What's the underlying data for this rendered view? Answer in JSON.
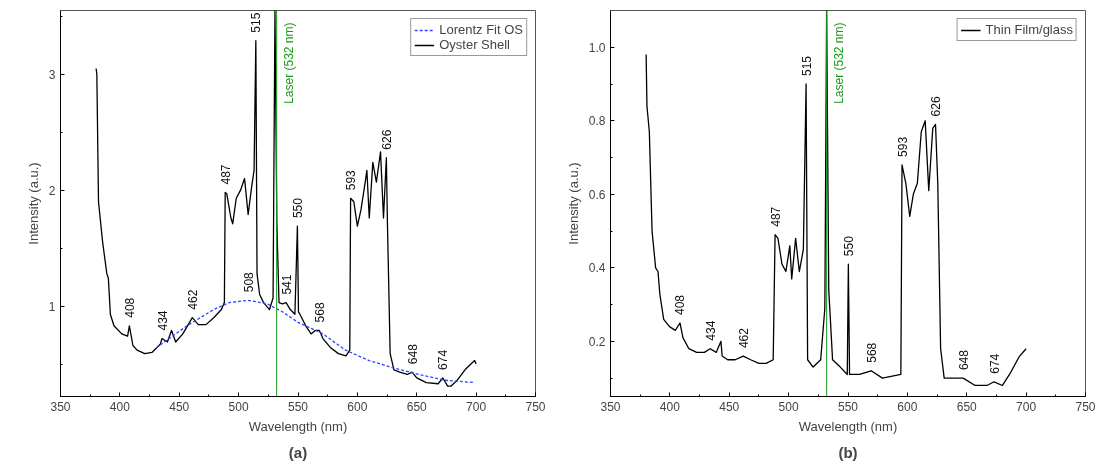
{
  "chart_data": [
    {
      "type": "line",
      "xlabel": "Wavelength (nm)",
      "ylabel": "Intensity (a.u.)",
      "xlim": [
        350,
        750
      ],
      "ylim": [
        0.22,
        3.55
      ],
      "xticks": [
        350,
        {
          "value": 375,
          "label": null
        },
        400,
        {
          "value": 425,
          "label": null
        },
        450,
        {
          "value": 475,
          "label": null
        },
        500,
        {
          "value": 525,
          "label": null
        },
        550,
        {
          "value": 575,
          "label": null
        },
        600,
        {
          "value": 625,
          "label": null
        },
        650,
        {
          "value": 675,
          "label": null
        },
        700,
        {
          "value": 725,
          "label": null
        },
        750
      ],
      "yticks": [
        {
          "value": 0.5,
          "label": null
        },
        1,
        {
          "value": 1.5,
          "label": null
        },
        2,
        {
          "value": 2.5,
          "label": null
        },
        3,
        {
          "value": 3.5,
          "label": null
        }
      ],
      "grid": false,
      "legend": "top right",
      "marker": "none",
      "series": [
        {
          "name": "Lorentz Fit OS",
          "color": "#2f45ff",
          "line_style": "dashed",
          "x": [
            430.6,
            456.5,
            479,
            492,
            508,
            524,
            537,
            550,
            571,
            590,
            610,
            629,
            652,
            674,
            698.7
          ],
          "values": [
            0.64,
            0.83,
            0.97,
            1.03,
            1.05,
            1.02,
            0.95,
            0.86,
            0.76,
            0.62,
            0.53,
            0.47,
            0.41,
            0.36,
            0.34
          ]
        },
        {
          "name": "Oyster Shell",
          "color": "#000000",
          "line_style": "solid",
          "x": [
            380,
            380.6,
            382,
            385.5,
            389,
            390.3,
            392,
            395,
            401.6,
            406.5,
            408,
            411,
            414.5,
            421,
            427,
            434,
            435.5,
            440,
            443.5,
            447,
            453,
            461,
            466,
            472.5,
            479,
            485.5,
            488,
            488.7,
            490,
            493.5,
            495,
            498,
            501.6,
            505,
            508,
            511,
            513,
            514.5,
            515.5,
            517.7,
            521,
            526,
            529,
            530.6,
            532.2,
            534,
            537,
            540,
            543.5,
            547.4,
            549.5,
            550.4,
            551.6,
            556.5,
            561,
            564.5,
            568,
            571,
            577.5,
            584,
            590.4,
            593.6,
            594.3,
            597,
            600,
            603,
            606.6,
            608,
            610,
            613,
            616,
            619.5,
            622,
            624.4,
            625.3,
            627.6,
            630.8,
            635.7,
            642,
            646,
            650,
            658,
            668,
            672,
            676,
            679,
            684,
            690.6,
            698.7,
            700
          ],
          "values": [
            3.05,
            3.0,
            1.9,
            1.55,
            1.28,
            1.24,
            0.93,
            0.83,
            0.76,
            0.74,
            0.83,
            0.66,
            0.62,
            0.59,
            0.6,
            0.67,
            0.72,
            0.69,
            0.79,
            0.69,
            0.76,
            0.9,
            0.84,
            0.84,
            0.9,
            0.97,
            1.03,
            1.98,
            1.97,
            1.76,
            1.71,
            1.93,
            2.0,
            2.1,
            1.79,
            2.03,
            2.17,
            3.29,
            1.28,
            1.1,
            1.03,
            0.97,
            1.07,
            3.55,
            1.72,
            1.03,
            1.02,
            1.03,
            0.97,
            0.93,
            1.69,
            0.95,
            0.93,
            0.83,
            0.76,
            0.79,
            0.79,
            0.72,
            0.64,
            0.59,
            0.57,
            0.62,
            1.93,
            1.9,
            1.69,
            1.83,
            2.07,
            2.17,
            1.76,
            2.24,
            2.07,
            2.33,
            1.76,
            2.28,
            1.72,
            0.59,
            0.45,
            0.43,
            0.41,
            0.43,
            0.38,
            0.34,
            0.33,
            0.38,
            0.31,
            0.31,
            0.36,
            0.45,
            0.53,
            0.5
          ]
        }
      ],
      "ref_lines": [
        {
          "axis": "x",
          "value": 532,
          "label": "Laser (532 nm)",
          "color": "#1a9a1a"
        }
      ],
      "annotations": [
        {
          "text": "408",
          "x": 408,
          "y": 0.83
        },
        {
          "text": "434",
          "x": 435.5,
          "y": 0.72
        },
        {
          "text": "462",
          "x": 461,
          "y": 0.9
        },
        {
          "text": "487",
          "x": 488.7,
          "y": 1.98
        },
        {
          "text": "508",
          "x": 508,
          "y": 1.05
        },
        {
          "text": "515",
          "x": 514.5,
          "y": 3.29
        },
        {
          "text": "541",
          "x": 540,
          "y": 1.03
        },
        {
          "text": "550",
          "x": 549.5,
          "y": 1.69
        },
        {
          "text": "568",
          "x": 568,
          "y": 0.79
        },
        {
          "text": "593",
          "x": 594.3,
          "y": 1.93
        },
        {
          "text": "626",
          "x": 624.4,
          "y": 2.28
        },
        {
          "text": "648",
          "x": 646,
          "y": 0.43
        },
        {
          "text": "674",
          "x": 672,
          "y": 0.38
        },
        "(a)"
      ]
    },
    {
      "type": "line",
      "xlabel": "Wavelength (nm)",
      "ylabel": "Intensity (a.u.)",
      "xlim": [
        350,
        750
      ],
      "ylim": [
        0.05,
        1.1
      ],
      "xticks": [
        350,
        {
          "value": 375,
          "label": null
        },
        400,
        {
          "value": 425,
          "label": null
        },
        450,
        {
          "value": 475,
          "label": null
        },
        500,
        {
          "value": 525,
          "label": null
        },
        550,
        {
          "value": 575,
          "label": null
        },
        600,
        {
          "value": 625,
          "label": null
        },
        650,
        {
          "value": 675,
          "label": null
        },
        700,
        {
          "value": 725,
          "label": null
        },
        750
      ],
      "yticks": [
        {
          "value": 0.1,
          "label": null
        },
        0.2,
        {
          "value": 0.3,
          "label": null
        },
        0.4,
        {
          "value": 0.5,
          "label": null
        },
        0.6,
        {
          "value": 0.7,
          "label": null
        },
        0.8,
        {
          "value": 0.9,
          "label": null
        },
        {
          "value": 1,
          "label": "1.0"
        }
      ],
      "grid": false,
      "legend": "top right",
      "marker": "none",
      "series": [
        {
          "name": "Thin Film/glass",
          "color": "#000000",
          "line_style": "solid",
          "x": [
            380,
            380.7,
            382.7,
            385,
            388,
            390,
            391.5,
            394.8,
            399.7,
            404.6,
            408.5,
            411,
            416,
            422.5,
            429,
            434,
            439,
            443,
            444,
            448.7,
            455,
            461.8,
            468,
            475,
            481,
            487,
            488.6,
            491,
            494.4,
            497.7,
            501,
            502.6,
            505.9,
            509,
            512.4,
            514.7,
            516,
            520.6,
            527,
            530.5,
            532,
            533.8,
            537,
            543.5,
            549.4,
            550.3,
            551.3,
            559.7,
            569.5,
            579,
            594.5,
            595.5,
            598.7,
            602,
            605,
            608.4,
            611.7,
            615,
            618,
            621.4,
            623.7,
            625.6,
            628,
            631,
            641,
            647,
            657,
            667,
            673,
            680,
            686,
            694.5,
            700
          ],
          "values": [
            0.98,
            0.84,
            0.77,
            0.5,
            0.4,
            0.39,
            0.33,
            0.26,
            0.24,
            0.23,
            0.25,
            0.21,
            0.18,
            0.17,
            0.17,
            0.18,
            0.17,
            0.2,
            0.16,
            0.15,
            0.15,
            0.16,
            0.15,
            0.14,
            0.14,
            0.15,
            0.49,
            0.48,
            0.41,
            0.39,
            0.46,
            0.37,
            0.48,
            0.39,
            0.45,
            0.9,
            0.15,
            0.13,
            0.15,
            0.29,
            1.1,
            0.34,
            0.15,
            0.13,
            0.11,
            0.41,
            0.11,
            0.11,
            0.12,
            0.1,
            0.11,
            0.68,
            0.63,
            0.54,
            0.6,
            0.63,
            0.77,
            0.8,
            0.61,
            0.78,
            0.79,
            0.63,
            0.18,
            0.1,
            0.1,
            0.1,
            0.08,
            0.08,
            0.09,
            0.08,
            0.11,
            0.16,
            0.18
          ]
        }
      ],
      "ref_lines": [
        {
          "axis": "x",
          "value": 532,
          "label": "Laser (532 nm)",
          "color": "#1a9a1a"
        }
      ],
      "annotations": [
        {
          "text": "408",
          "x": 408.5,
          "y": 0.25
        },
        {
          "text": "434",
          "x": 434,
          "y": 0.18
        },
        {
          "text": "462",
          "x": 461.8,
          "y": 0.16
        },
        {
          "text": "487",
          "x": 488.6,
          "y": 0.49
        },
        {
          "text": "515",
          "x": 514.7,
          "y": 0.9
        },
        {
          "text": "550",
          "x": 550.3,
          "y": 0.41
        },
        {
          "text": "568",
          "x": 569.5,
          "y": 0.12
        },
        {
          "text": "593",
          "x": 595.5,
          "y": 0.68
        },
        {
          "text": "626",
          "x": 623.7,
          "y": 0.79
        },
        {
          "text": "648",
          "x": 647,
          "y": 0.1
        },
        {
          "text": "674",
          "x": 673,
          "y": 0.09
        },
        "(b)"
      ]
    }
  ]
}
